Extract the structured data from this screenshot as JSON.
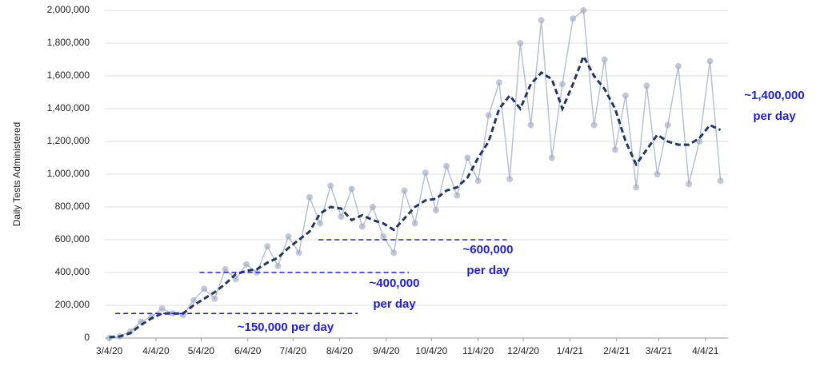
{
  "chart_data": {
    "type": "line",
    "y_label": "Daily Tests Administered",
    "x": [
      "3/4/20",
      "3/11/20",
      "3/18/20",
      "3/25/20",
      "4/1/20",
      "4/8/20",
      "4/15/20",
      "4/22/20",
      "4/29/20",
      "5/6/20",
      "5/13/20",
      "5/20/20",
      "5/27/20",
      "6/3/20",
      "6/10/20",
      "6/17/20",
      "6/24/20",
      "7/1/20",
      "7/8/20",
      "7/15/20",
      "7/22/20",
      "7/29/20",
      "8/5/20",
      "8/12/20",
      "8/19/20",
      "8/26/20",
      "9/2/20",
      "9/9/20",
      "9/16/20",
      "9/23/20",
      "9/30/20",
      "10/7/20",
      "10/14/20",
      "10/21/20",
      "10/28/20",
      "11/4/20",
      "11/11/20",
      "11/18/20",
      "11/25/20",
      "12/2/20",
      "12/9/20",
      "12/16/20",
      "12/23/20",
      "12/30/20",
      "1/6/21",
      "1/13/21",
      "1/20/21",
      "1/27/21",
      "2/3/21",
      "2/10/21",
      "2/17/21",
      "2/24/21",
      "3/3/21",
      "3/10/21",
      "3/17/21",
      "3/24/21",
      "3/31/21",
      "4/7/21",
      "4/14/21"
    ],
    "series": [
      {
        "style": "points",
        "color": "#9aa6c2",
        "values": [
          0,
          10000,
          40000,
          100000,
          130000,
          180000,
          150000,
          140000,
          230000,
          300000,
          240000,
          420000,
          360000,
          450000,
          400000,
          560000,
          440000,
          620000,
          520000,
          860000,
          700000,
          930000,
          740000,
          910000,
          680000,
          800000,
          620000,
          520000,
          900000,
          700000,
          1010000,
          780000,
          1050000,
          870000,
          1100000,
          960000,
          1360000,
          1560000,
          970000,
          1800000,
          1300000,
          1940000,
          1100000,
          1550000,
          1950000,
          2000000,
          1300000,
          1700000,
          1150000,
          1480000,
          920000,
          1540000,
          1000000,
          1300000,
          1660000,
          940000,
          1200000,
          1690000,
          960000
        ]
      },
      {
        "style": "dashed",
        "color": "#1f3864",
        "values": [
          5000,
          10000,
          30000,
          80000,
          120000,
          150000,
          150000,
          150000,
          200000,
          240000,
          280000,
          330000,
          390000,
          410000,
          420000,
          460000,
          490000,
          550000,
          600000,
          650000,
          760000,
          800000,
          790000,
          720000,
          750000,
          720000,
          700000,
          660000,
          730000,
          800000,
          840000,
          850000,
          900000,
          920000,
          980000,
          1100000,
          1200000,
          1400000,
          1480000,
          1400000,
          1550000,
          1620000,
          1580000,
          1400000,
          1550000,
          1720000,
          1600000,
          1520000,
          1400000,
          1200000,
          1060000,
          1150000,
          1240000,
          1200000,
          1180000,
          1180000,
          1220000,
          1300000,
          1270000
        ]
      }
    ],
    "reference_lines": [
      {
        "value": 150000,
        "start": "3/8/20",
        "end": "8/16/20",
        "label": [
          "~150,000 per day"
        ]
      },
      {
        "value": 400000,
        "start": "5/3/20",
        "end": "9/19/20",
        "label": [
          "~400,000",
          "per day"
        ]
      },
      {
        "value": 600000,
        "start": "7/21/20",
        "end": "11/23/20",
        "label": [
          "~600,000",
          "per day"
        ]
      }
    ],
    "annotations": [
      {
        "label": [
          "~1,400,000",
          "per day"
        ]
      }
    ],
    "reference_color": "#1f1fd6",
    "xlim": [
      "3/1/20",
      "4/19/21"
    ],
    "xticks": [
      "3/4/20",
      "4/4/20",
      "5/4/20",
      "6/4/20",
      "7/4/20",
      "8/4/20",
      "9/4/20",
      "10/4/20",
      "11/4/20",
      "12/4/20",
      "1/4/21",
      "2/4/21",
      "3/4/21",
      "4/4/21"
    ],
    "ylim": [
      0,
      2000000
    ],
    "yticks": [
      0,
      {
        "value": 200000,
        "label": "200,000"
      },
      {
        "value": 400000,
        "label": "400,000"
      },
      {
        "value": 600000,
        "label": "600,000"
      },
      {
        "value": 800000,
        "label": "800,000"
      },
      {
        "value": 1000000,
        "label": "1,000,000"
      },
      {
        "value": 1200000,
        "label": "1,200,000"
      },
      {
        "value": 1400000,
        "label": "1,400,000"
      },
      {
        "value": 1600000,
        "label": "1,600,000"
      },
      {
        "value": 1800000,
        "label": "1,800,000"
      },
      {
        "value": 2000000,
        "label": "2,000,000"
      }
    ],
    "grid": true
  }
}
